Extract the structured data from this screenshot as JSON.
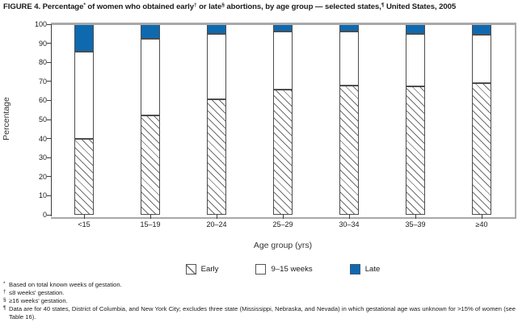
{
  "figure": {
    "title_segments": [
      {
        "text": "FIGURE 4. Percentage",
        "sup": false
      },
      {
        "text": "*",
        "sup": true
      },
      {
        "text": " of women who obtained early",
        "sup": false
      },
      {
        "text": "†",
        "sup": true
      },
      {
        "text": " or late",
        "sup": false
      },
      {
        "text": "§",
        "sup": true
      },
      {
        "text": " abortions, by age group — selected states,",
        "sup": false
      },
      {
        "text": "¶",
        "sup": true
      },
      {
        "text": " United States, 2005",
        "sup": false
      }
    ],
    "y_axis_title": "Percentage",
    "x_axis_title": "Age group (yrs)"
  },
  "chart_data": {
    "type": "bar",
    "stacked": true,
    "title": "FIGURE 4. Percentage* of women who obtained early† or late§ abortions, by age group — selected states,¶ United States, 2005",
    "categories": [
      "<15",
      "15–19",
      "20–24",
      "25–29",
      "30–34",
      "35–39",
      "≥40"
    ],
    "series": [
      {
        "name": "Early",
        "style": "hatched",
        "values": [
          40,
          52,
          60.5,
          65.5,
          68,
          67.5,
          69
        ]
      },
      {
        "name": "9–15 weeks",
        "style": "white",
        "values": [
          45.5,
          40.5,
          34.5,
          30.5,
          28,
          27.5,
          25.5
        ]
      },
      {
        "name": "Late",
        "style": "blue",
        "values": [
          14.5,
          7.5,
          5,
          4,
          4,
          5,
          5.5
        ]
      }
    ],
    "xlabel": "Age group (yrs)",
    "ylabel": "Percentage",
    "ylim": [
      0,
      100
    ],
    "ytick_step": 10,
    "grid": false,
    "legend_position": "bottom-center"
  },
  "legend": {
    "items": [
      {
        "label": "Early",
        "swatch": "hatched"
      },
      {
        "label": "9–15 weeks",
        "swatch": "white"
      },
      {
        "label": "Late",
        "swatch": "blue"
      }
    ]
  },
  "footnotes": [
    {
      "marker": "*",
      "text": "Based on total known weeks of gestation."
    },
    {
      "marker": "†",
      "text": "≤8 weeks' gestation."
    },
    {
      "marker": "§",
      "text": "≥16 weeks' gestation."
    },
    {
      "marker": "¶",
      "text": "Data are for 40 states, District of Columbia, and New York City; excludes three state (Mississippi, Nebraska, and Nevada) in which gestational age was unknown for >15% of women (see Table 16)."
    }
  ],
  "colors": {
    "late_blue": "#0f69af",
    "bar_border": "#4d4d4d",
    "frame_gray": "#a9a9a9",
    "hatch_line": "#6e6e6e",
    "text": "#1a1a1a"
  }
}
